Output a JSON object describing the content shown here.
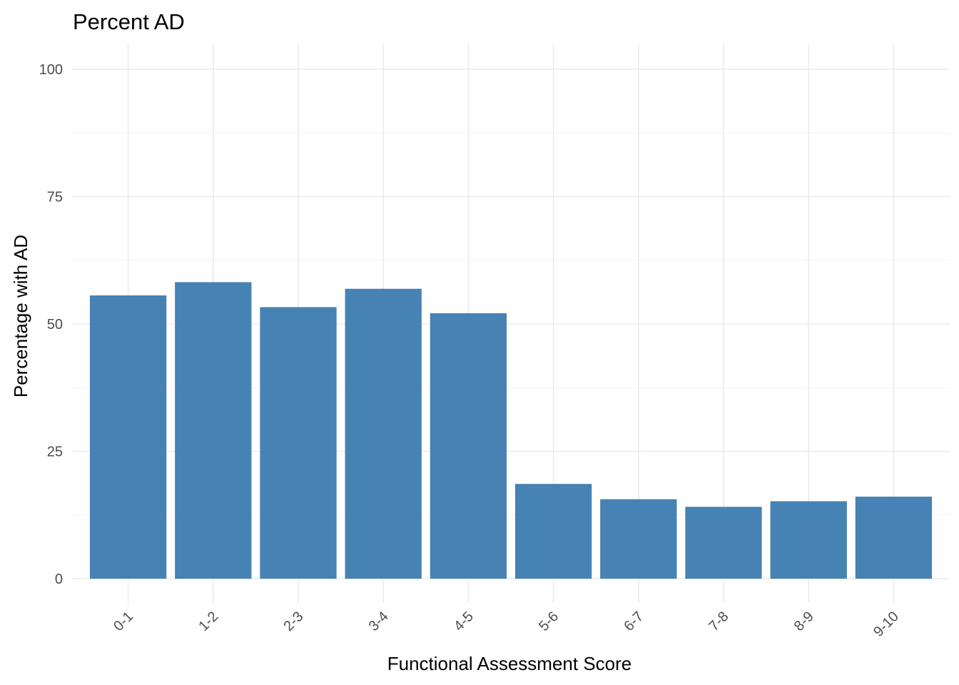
{
  "chart_data": {
    "type": "bar",
    "title": "Percent AD",
    "xlabel": "Functional Assessment Score",
    "ylabel": "Percentage with AD",
    "categories": [
      "0-1",
      "1-2",
      "2-3",
      "3-4",
      "4-5",
      "5-6",
      "6-7",
      "7-8",
      "8-9",
      "9-10"
    ],
    "values": [
      55.6,
      58.2,
      53.3,
      56.9,
      52.1,
      18.6,
      15.6,
      14.1,
      15.2,
      16.1
    ],
    "ylim": [
      0,
      100
    ],
    "yticks": [
      0,
      25,
      50,
      75,
      100
    ],
    "grid": true,
    "legend": "none",
    "bar_color": "#4682b4"
  }
}
